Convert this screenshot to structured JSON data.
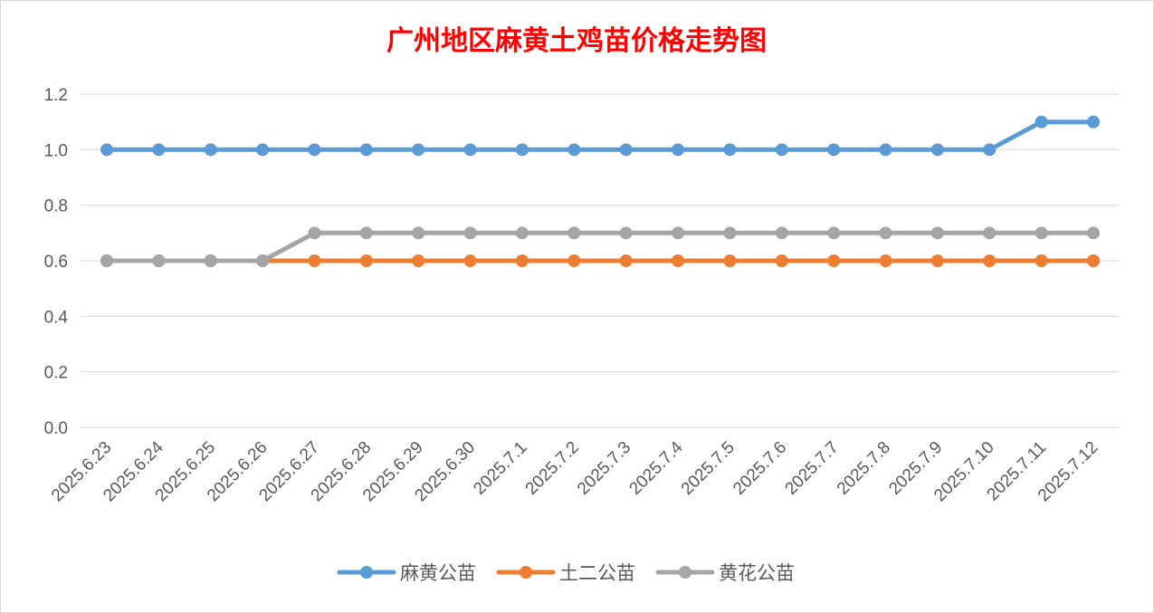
{
  "chart_data": {
    "type": "line",
    "title": "广州地区麻黄土鸡苗价格走势图",
    "xlabel": "",
    "ylabel": "",
    "ylim": [
      0,
      1.2
    ],
    "yticks": [
      "0.0",
      "0.2",
      "0.4",
      "0.6",
      "0.8",
      "1.0",
      "1.2"
    ],
    "grid": true,
    "legend_position": "bottom",
    "categories": [
      "2025.6.23",
      "2025.6.24",
      "2025.6.25",
      "2025.6.26",
      "2025.6.27",
      "2025.6.28",
      "2025.6.29",
      "2025.6.30",
      "2025.7.1",
      "2025.7.2",
      "2025.7.3",
      "2025.7.4",
      "2025.7.5",
      "2025.7.6",
      "2025.7.7",
      "2025.7.8",
      "2025.7.9",
      "2025.7.10",
      "2025.7.11",
      "2025.7.12"
    ],
    "series": [
      {
        "name": "麻黄公苗",
        "color": "#5b9bd5",
        "values": [
          1.0,
          1.0,
          1.0,
          1.0,
          1.0,
          1.0,
          1.0,
          1.0,
          1.0,
          1.0,
          1.0,
          1.0,
          1.0,
          1.0,
          1.0,
          1.0,
          1.0,
          1.0,
          1.1,
          1.1
        ]
      },
      {
        "name": "土二公苗",
        "color": "#ed7d31",
        "values": [
          0.6,
          0.6,
          0.6,
          0.6,
          0.6,
          0.6,
          0.6,
          0.6,
          0.6,
          0.6,
          0.6,
          0.6,
          0.6,
          0.6,
          0.6,
          0.6,
          0.6,
          0.6,
          0.6,
          0.6
        ]
      },
      {
        "name": "黄花公苗",
        "color": "#a5a5a5",
        "values": [
          0.6,
          0.6,
          0.6,
          0.6,
          0.7,
          0.7,
          0.7,
          0.7,
          0.7,
          0.7,
          0.7,
          0.7,
          0.7,
          0.7,
          0.7,
          0.7,
          0.7,
          0.7,
          0.7,
          0.7
        ]
      }
    ]
  },
  "colors": {
    "title": "#ff0000",
    "axis_text": "#595959",
    "grid": "#d9d9d9"
  }
}
